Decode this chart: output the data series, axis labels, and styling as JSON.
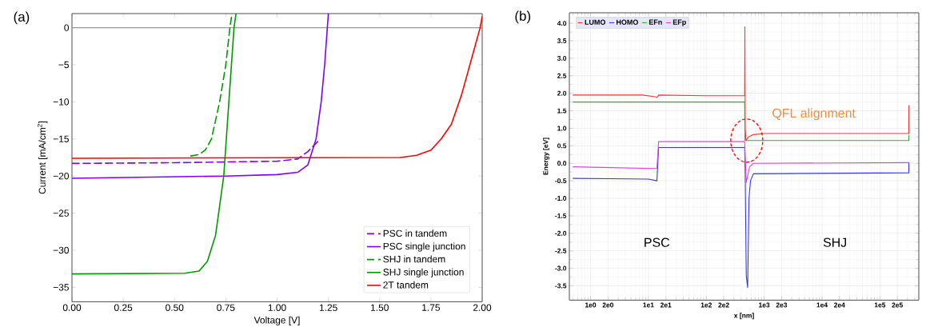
{
  "chart_data": [
    {
      "type": "line",
      "title": "(a)",
      "xlabel": "Voltage [V]",
      "ylabel": "Current [mA/cm$^{2}$]",
      "xlim": [
        0,
        2
      ],
      "ylim": [
        -36.9,
        1.9
      ],
      "xticks": [
        {
          "value": 0,
          "label": "0.00"
        },
        {
          "value": 0.25,
          "label": "0.25"
        },
        {
          "value": 0.5,
          "label": "0.50"
        },
        {
          "value": 0.75,
          "label": "0.75"
        },
        {
          "value": 1,
          "label": "1.00"
        },
        {
          "value": 1.25,
          "label": "1.25"
        },
        {
          "value": 1.5,
          "label": "1.50"
        },
        {
          "value": 1.75,
          "label": "1.75"
        },
        {
          "value": 2,
          "label": "2.00"
        }
      ],
      "yticks": [
        {
          "value": 0,
          "label": "0"
        },
        {
          "value": -5,
          "label": "−5"
        },
        {
          "value": -10,
          "label": "−10"
        },
        {
          "value": -15,
          "label": "−15"
        },
        {
          "value": -20,
          "label": "−20"
        },
        {
          "value": -25,
          "label": "−25"
        },
        {
          "value": -30,
          "label": "−30"
        },
        {
          "value": -35,
          "label": "−35"
        }
      ],
      "legend": "bottom right",
      "ref_lines": [
        {
          "axis": "y",
          "value": 0,
          "color": "#999999"
        }
      ],
      "series": [
        {
          "name": "PSC in tandem",
          "color": "#8000ff",
          "line_style": "dashed",
          "x": [
            0,
            0.5,
            1.0,
            1.1,
            1.15,
            1.2
          ],
          "values": [
            -18.3,
            -18.2,
            -18.0,
            -17.7,
            -16.7,
            -15.3
          ]
        },
        {
          "name": "PSC single junction",
          "color": "#8000ff",
          "line_style": "solid",
          "x": [
            0,
            0.75,
            1.0,
            1.1,
            1.15,
            1.19,
            1.215,
            1.232,
            1.245,
            1.25
          ],
          "values": [
            -20.3,
            -20.0,
            -19.8,
            -19.5,
            -18.5,
            -15,
            -10,
            -5,
            0,
            1.9
          ]
        },
        {
          "name": "SHJ in tandem",
          "color": "#009900",
          "line_style": "dashed",
          "x": [
            0.58,
            0.62,
            0.65,
            0.68,
            0.72,
            0.75,
            0.77,
            0.78
          ],
          "values": [
            -17.3,
            -17.1,
            -16.5,
            -15,
            -10,
            -5,
            0,
            1.9
          ]
        },
        {
          "name": "SHJ single junction",
          "color": "#009900",
          "line_style": "solid",
          "x": [
            0,
            0.55,
            0.62,
            0.66,
            0.7,
            0.74,
            0.765,
            0.79,
            0.8
          ],
          "values": [
            -33.2,
            -33.1,
            -32.8,
            -31.5,
            -28,
            -20,
            -10,
            0,
            1.9
          ]
        },
        {
          "name": "2T tandem",
          "color": "#ff0000",
          "line_style": "solid",
          "x": [
            0,
            1.6,
            1.68,
            1.75,
            1.8,
            1.85,
            1.9,
            1.95,
            1.99,
            2.0
          ],
          "values": [
            -17.6,
            -17.5,
            -17.2,
            -16.5,
            -15,
            -13,
            -9,
            -4,
            0,
            1.5
          ]
        }
      ]
    },
    {
      "type": "line",
      "title": "(b)",
      "xlabel": "x [nm]",
      "ylabel": "Energy [eV]",
      "log": "x",
      "grid": true,
      "legend": "top left",
      "xlim": [
        0.43,
        470000
      ],
      "ylim": [
        -3.9,
        4.3
      ],
      "xticks": [
        {
          "value": 1,
          "label": "1e0"
        },
        {
          "value": 2,
          "label": "2e0"
        },
        {
          "value": 10,
          "label": "1e1"
        },
        {
          "value": 20,
          "label": "2e1"
        },
        {
          "value": 100,
          "label": "1e2"
        },
        {
          "value": 200,
          "label": "2e2"
        },
        {
          "value": 1000,
          "label": "1e3"
        },
        {
          "value": 2000,
          "label": "2e3"
        },
        {
          "value": 10000,
          "label": "1e4"
        },
        {
          "value": 20000,
          "label": "2e4"
        },
        {
          "value": 100000,
          "label": "1e5"
        },
        {
          "value": 200000,
          "label": "2e5"
        }
      ],
      "yticks": [
        {
          "value": 4,
          "label": "4.0"
        },
        {
          "value": 3.5,
          "label": "3.5"
        },
        {
          "value": 3,
          "label": "3.0"
        },
        {
          "value": 2.5,
          "label": "2.5"
        },
        {
          "value": 2,
          "label": "2.0"
        },
        {
          "value": 1.5,
          "label": "1.5"
        },
        {
          "value": 1,
          "label": "1.0"
        },
        {
          "value": 0.5,
          "label": "0.5"
        },
        {
          "value": 0,
          "label": "0.0"
        },
        {
          "value": -0.5,
          "label": "-0.5"
        },
        {
          "value": -1,
          "label": "-1.0"
        },
        {
          "value": -1.5,
          "label": "-1.5"
        },
        {
          "value": -2,
          "label": "-2.0"
        },
        {
          "value": -2.5,
          "label": "-2.5"
        },
        {
          "value": -3,
          "label": "-3.0"
        },
        {
          "value": -3.5,
          "label": "-3.5"
        }
      ],
      "annotations": [
        {
          "text": "QFL alignment",
          "x": 500,
          "y": 0.65
        },
        "PSC",
        "SHJ"
      ],
      "series": [
        {
          "name": "LUMO",
          "color": "#ff3333",
          "x": [
            0.5,
            8,
            13,
            14,
            15,
            100,
            460,
            464,
            470,
            485,
            530,
            650,
            1000,
            316000,
            317000
          ],
          "values": [
            1.95,
            1.95,
            1.9,
            1.88,
            1.95,
            1.93,
            1.93,
            3.9,
            1.0,
            0.65,
            0.75,
            0.82,
            0.85,
            0.85,
            1.65
          ]
        },
        {
          "name": "HOMO",
          "color": "#3333ff",
          "x": [
            0.5,
            10,
            14,
            15,
            460,
            470,
            490,
            518,
            547,
            580,
            650,
            316000,
            317000
          ],
          "values": [
            -0.43,
            -0.45,
            -0.5,
            0.45,
            0.45,
            -0.3,
            -3.2,
            -3.55,
            -1.0,
            -0.5,
            -0.3,
            -0.27,
            0.0
          ]
        },
        {
          "name": "EFn",
          "color": "#33aa33",
          "x": [
            0.5,
            460,
            466,
            316000,
            317000
          ],
          "values": [
            1.75,
            1.75,
            0.65,
            0.65,
            0.8
          ]
        },
        {
          "name": "EFp",
          "color": "#dd44dd",
          "x": [
            0.5,
            14,
            15,
            460,
            490,
            560,
            650,
            316000
          ],
          "values": [
            -0.1,
            -0.15,
            0.62,
            0.62,
            -0.55,
            -0.1,
            0.0,
            0.02
          ]
        }
      ]
    }
  ]
}
